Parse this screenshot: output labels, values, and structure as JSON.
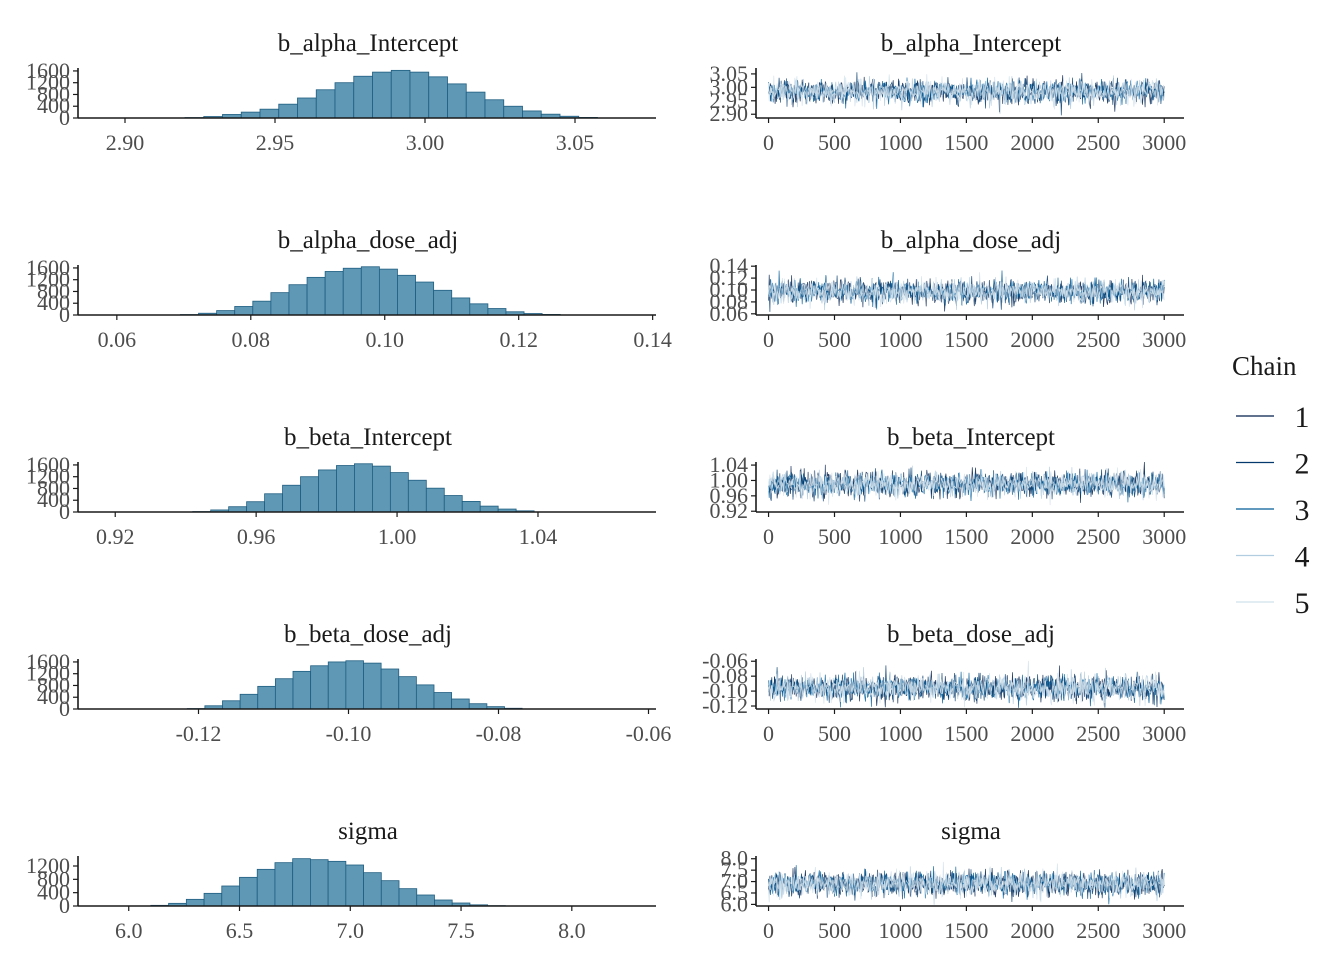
{
  "legend": {
    "title": "Chain",
    "items": [
      {
        "label": "1",
        "color": "#011f4b"
      },
      {
        "label": "2",
        "color": "#03396c"
      },
      {
        "label": "3",
        "color": "#005b96"
      },
      {
        "label": "4",
        "color": "#b3cde0"
      },
      {
        "label": "5",
        "color": "#d1e1ec"
      }
    ]
  },
  "chart_data": [
    {
      "type": "bar",
      "panel": "histogram",
      "title": "b_alpha_Intercept",
      "xlim": [
        2.885,
        3.077
      ],
      "ylim": [
        0,
        1700
      ],
      "x_ticks": [
        2.9,
        2.95,
        3.0,
        3.05
      ],
      "x_tick_labels": [
        "2.90",
        "2.95",
        "3.00",
        "3.05"
      ],
      "y_ticks": [
        0,
        400,
        800,
        1200,
        1600
      ],
      "y_tick_labels": [
        "0",
        "400",
        "800",
        "1200",
        "1600"
      ],
      "bin_start": 2.92,
      "bin_width": 0.00625,
      "values": [
        15,
        50,
        120,
        200,
        300,
        470,
        680,
        960,
        1200,
        1420,
        1560,
        1620,
        1560,
        1400,
        1160,
        880,
        620,
        400,
        240,
        130,
        60,
        20
      ],
      "fill": "#5f98b5",
      "edge": "#1f5d80"
    },
    {
      "type": "line",
      "panel": "trace",
      "title": "b_alpha_Intercept",
      "xlim": [
        -80,
        3150
      ],
      "ylim": [
        2.886,
        3.072
      ],
      "x_ticks": [
        0,
        500,
        1000,
        1500,
        2000,
        2500,
        3000
      ],
      "x_tick_labels": [
        "0",
        "500",
        "1000",
        "1500",
        "2000",
        "2500",
        "3000"
      ],
      "y_ticks": [
        2.9,
        2.95,
        3.0,
        3.05
      ],
      "y_tick_labels": [
        "2.90",
        "2.95",
        "3.00",
        "3.05"
      ],
      "iterations": 3000,
      "center": 2.984,
      "sd": 0.022
    },
    {
      "type": "bar",
      "panel": "histogram",
      "title": "b_alpha_dose_adj",
      "xlim": [
        0.0545,
        0.1405
      ],
      "ylim": [
        0,
        1700
      ],
      "x_ticks": [
        0.06,
        0.08,
        0.1,
        0.12,
        0.14
      ],
      "x_tick_labels": [
        "0.06",
        "0.08",
        "0.10",
        "0.12",
        "0.14"
      ],
      "y_ticks": [
        0,
        400,
        800,
        1200,
        1600
      ],
      "y_tick_labels": [
        "0",
        "400",
        "800",
        "1200",
        "1600"
      ],
      "bin_start": 0.0695,
      "bin_width": 0.0027,
      "values": [
        15,
        60,
        150,
        290,
        470,
        760,
        1030,
        1280,
        1480,
        1590,
        1640,
        1560,
        1350,
        1120,
        840,
        580,
        380,
        220,
        110,
        50,
        20
      ],
      "fill": "#5f98b5",
      "edge": "#1f5d80"
    },
    {
      "type": "line",
      "panel": "trace",
      "title": "b_alpha_dose_adj",
      "xlim": [
        -80,
        3150
      ],
      "ylim": [
        0.058,
        0.142
      ],
      "x_ticks": [
        0,
        500,
        1000,
        1500,
        2000,
        2500,
        3000
      ],
      "x_tick_labels": [
        "0",
        "500",
        "1000",
        "1500",
        "2000",
        "2500",
        "3000"
      ],
      "y_ticks": [
        0.06,
        0.08,
        0.1,
        0.12,
        0.14
      ],
      "y_tick_labels": [
        "0.06",
        "0.08",
        "0.10",
        "0.12",
        "0.14"
      ],
      "iterations": 3000,
      "center": 0.097,
      "sd": 0.01
    },
    {
      "type": "bar",
      "panel": "histogram",
      "title": "b_beta_Intercept",
      "xlim": [
        0.91,
        1.0735
      ],
      "ylim": [
        0,
        1700
      ],
      "x_ticks": [
        0.92,
        0.96,
        1.0,
        1.04
      ],
      "x_tick_labels": [
        "0.92",
        "0.96",
        "1.00",
        "1.04"
      ],
      "y_ticks": [
        0,
        400,
        800,
        1200,
        1600
      ],
      "y_tick_labels": [
        "0",
        "400",
        "800",
        "1200",
        "1600"
      ],
      "bin_start": 0.942,
      "bin_width": 0.0051,
      "values": [
        15,
        70,
        180,
        350,
        620,
        910,
        1200,
        1430,
        1580,
        1640,
        1560,
        1340,
        1080,
        810,
        560,
        360,
        200,
        100,
        40
      ],
      "fill": "#5f98b5",
      "edge": "#1f5d80"
    },
    {
      "type": "line",
      "panel": "trace",
      "title": "b_beta_Intercept",
      "xlim": [
        -80,
        3150
      ],
      "ylim": [
        0.918,
        1.048
      ],
      "x_ticks": [
        0,
        500,
        1000,
        1500,
        2000,
        2500,
        3000
      ],
      "x_tick_labels": [
        "0",
        "500",
        "1000",
        "1500",
        "2000",
        "2500",
        "3000"
      ],
      "y_ticks": [
        0.92,
        0.96,
        1.0,
        1.04
      ],
      "y_tick_labels": [
        "0.92",
        "0.96",
        "1.00",
        "1.04"
      ],
      "iterations": 3000,
      "center": 0.99,
      "sd": 0.016
    },
    {
      "type": "bar",
      "panel": "histogram",
      "title": "b_beta_dose_adj",
      "xlim": [
        -0.1358,
        -0.059
      ],
      "ylim": [
        0,
        1700
      ],
      "x_ticks": [
        -0.12,
        -0.1,
        -0.08,
        -0.06
      ],
      "x_tick_labels": [
        "-0.12",
        "-0.10",
        "-0.08",
        "-0.06"
      ],
      "y_ticks": [
        0,
        400,
        800,
        1200,
        1600
      ],
      "y_tick_labels": [
        "0",
        "400",
        "800",
        "1200",
        "1600"
      ],
      "bin_start": -0.1215,
      "bin_width": 0.00235,
      "values": [
        15,
        110,
        280,
        500,
        770,
        1030,
        1280,
        1470,
        1600,
        1640,
        1560,
        1360,
        1100,
        820,
        560,
        340,
        180,
        80,
        25
      ],
      "fill": "#5f98b5",
      "edge": "#1f5d80"
    },
    {
      "type": "line",
      "panel": "trace",
      "title": "b_beta_dose_adj",
      "xlim": [
        -80,
        3150
      ],
      "ylim": [
        -0.124,
        -0.057
      ],
      "x_ticks": [
        0,
        500,
        1000,
        1500,
        2000,
        2500,
        3000
      ],
      "x_tick_labels": [
        "0",
        "500",
        "1000",
        "1500",
        "2000",
        "2500",
        "3000"
      ],
      "y_ticks": [
        -0.06,
        -0.08,
        -0.1,
        -0.12
      ],
      "y_tick_labels": [
        "-0.06",
        "-0.08",
        "-0.10",
        "-0.12"
      ],
      "iterations": 3000,
      "center": -0.096,
      "sd": 0.0085
    },
    {
      "type": "bar",
      "panel": "histogram",
      "title": "sigma",
      "xlim": [
        5.78,
        8.38
      ],
      "ylim": [
        0,
        1500
      ],
      "x_ticks": [
        6.0,
        6.5,
        7.0,
        7.5,
        8.0
      ],
      "x_tick_labels": [
        "6.0",
        "6.5",
        "7.0",
        "7.5",
        "8.0"
      ],
      "y_ticks": [
        0,
        400,
        800,
        1200
      ],
      "y_tick_labels": [
        "0",
        "400",
        "800",
        "1200"
      ],
      "bin_start": 6.1,
      "bin_width": 0.08,
      "values": [
        20,
        80,
        200,
        380,
        600,
        860,
        1100,
        1300,
        1420,
        1390,
        1340,
        1230,
        1000,
        760,
        520,
        330,
        180,
        90,
        35,
        10
      ],
      "fill": "#5f98b5",
      "edge": "#1f5d80"
    },
    {
      "type": "line",
      "panel": "trace",
      "title": "sigma",
      "xlim": [
        -80,
        3150
      ],
      "ylim": [
        5.93,
        8.12
      ],
      "x_ticks": [
        0,
        500,
        1000,
        1500,
        2000,
        2500,
        3000
      ],
      "x_tick_labels": [
        "0",
        "500",
        "1000",
        "1500",
        "2000",
        "2500",
        "3000"
      ],
      "y_ticks": [
        6.0,
        6.5,
        7.0,
        7.5,
        8.0
      ],
      "y_tick_labels": [
        "6.0",
        "6.5",
        "7.0",
        "7.5",
        "8.0"
      ],
      "iterations": 3000,
      "center": 6.9,
      "sd": 0.27
    }
  ]
}
